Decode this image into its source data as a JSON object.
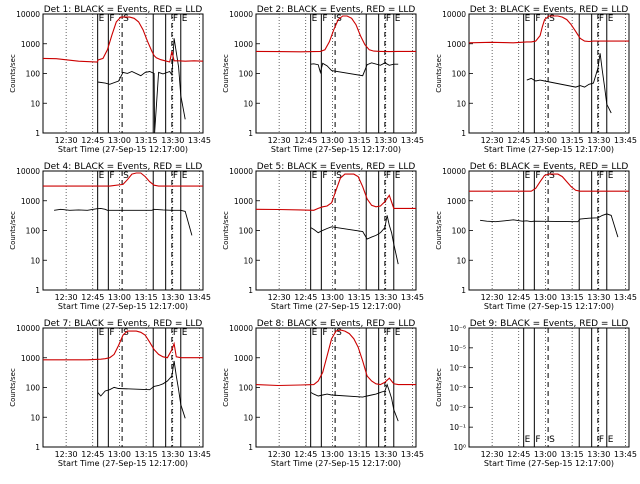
{
  "chart_data": [
    {
      "type": "line",
      "title": "Det 1: BLACK = Events, RED = LLD",
      "xlabel": "Start Time (27-Sep-15 12:17:00)",
      "ylabel": "Counts/sec",
      "x_tick_labels": [
        "12:30",
        "12:45",
        "13:00",
        "13:15",
        "13:30",
        "13:45"
      ],
      "y_tick_labels": [
        "1",
        "10",
        "100",
        "1000",
        "10000"
      ],
      "markers": [
        "E",
        "F",
        "S",
        "F",
        "E"
      ],
      "series": [
        {
          "name": "Events",
          "color": "#000000",
          "x": [
            12.3,
            14,
            15,
            17,
            18,
            19,
            20,
            22,
            23,
            24,
            25,
            25.1,
            26,
            27,
            28.5,
            29,
            29.5,
            30.5,
            31,
            32
          ],
          "y": [
            60,
            55,
            50,
            65,
            130,
            120,
            140,
            100,
            130,
            140,
            120,
            1,
            130,
            115,
            140,
            105,
            2000,
            200,
            20,
            3
          ]
        },
        {
          "name": "LLD",
          "color": "#cc0000",
          "x": [
            0,
            3,
            8,
            12.2,
            12.4,
            13.5,
            14.5,
            15.5,
            16.5,
            17.5,
            18.5,
            19.5,
            20.5,
            21.5,
            22.5,
            23.5,
            24.5,
            25,
            25.5,
            26.5,
            27.5,
            28.5,
            29,
            29.5,
            30.5,
            32,
            34,
            36
          ],
          "y": [
            400,
            390,
            320,
            300,
            350,
            400,
            800,
            2600,
            7500,
            11000,
            11000,
            11000,
            10000,
            7500,
            4000,
            1600,
            700,
            500,
            420,
            360,
            330,
            300,
            700,
            330,
            330,
            320,
            330,
            320
          ]
        }
      ]
    },
    {
      "type": "line",
      "title": "Det 2: BLACK = Events, RED = LLD",
      "xlabel": "Start Time (27-Sep-15 12:17:00)",
      "ylabel": "Counts/sec",
      "x_tick_labels": [
        "12:30",
        "12:45",
        "13:00",
        "13:15",
        "13:30",
        "13:45"
      ],
      "y_tick_labels": [
        "1",
        "10",
        "100",
        "1000",
        "10000"
      ],
      "markers": [
        "E",
        "F",
        "S",
        "F",
        "E"
      ],
      "series": [
        {
          "name": "Events",
          "color": "#000000",
          "x": [
            12.3,
            13,
            14,
            14.5,
            15,
            16,
            17,
            24,
            25,
            26,
            28,
            29,
            30,
            31,
            32
          ],
          "y": [
            250,
            260,
            240,
            130,
            270,
            220,
            150,
            100,
            240,
            280,
            230,
            280,
            230,
            250,
            250
          ]
        },
        {
          "name": "LLD",
          "color": "#cc0000",
          "x": [
            0,
            5,
            10,
            14.5,
            15.5,
            16.5,
            17.5,
            18.5,
            19.5,
            20.5,
            21.5,
            22.5,
            23.5,
            24.5,
            25.5,
            26.5,
            28,
            30,
            32,
            36
          ],
          "y": [
            700,
            690,
            680,
            700,
            800,
            1500,
            4000,
            9000,
            12000,
            12000,
            10000,
            6000,
            2500,
            1200,
            800,
            720,
            700,
            690,
            700,
            700
          ]
        }
      ]
    },
    {
      "type": "line",
      "title": "Det 3: BLACK = Events, RED = LLD",
      "xlabel": "Start Time (27-Sep-15 12:17:00)",
      "ylabel": "Counts/sec",
      "x_tick_labels": [
        "12:30",
        "12:45",
        "13:00",
        "13:15",
        "13:30",
        "13:45"
      ],
      "y_tick_labels": [
        "1",
        "10",
        "100",
        "1000",
        "10000"
      ],
      "markers": [
        "E",
        "F",
        "S",
        "F",
        "E"
      ],
      "series": [
        {
          "name": "Events",
          "color": "#000000",
          "x": [
            13,
            14,
            15,
            16,
            17,
            24,
            25,
            26,
            27,
            28,
            29,
            29.5,
            30,
            30.5,
            31,
            32
          ],
          "y": [
            70,
            80,
            65,
            70,
            65,
            40,
            45,
            40,
            50,
            55,
            180,
            600,
            150,
            40,
            10,
            5
          ]
        },
        {
          "name": "LLD",
          "color": "#cc0000",
          "x": [
            0,
            5,
            10,
            13,
            14,
            15,
            16,
            16.5,
            17,
            18,
            19,
            20,
            21,
            22,
            23,
            24,
            25,
            26,
            27,
            28,
            30,
            32,
            34,
            36
          ],
          "y": [
            1400,
            1450,
            1400,
            1500,
            1500,
            1600,
            2500,
            5000,
            9000,
            12000,
            12000,
            12000,
            11000,
            9000,
            6000,
            3500,
            2000,
            1600,
            1550,
            1600,
            1600,
            1600,
            1600,
            1600
          ]
        }
      ]
    },
    {
      "type": "line",
      "title": "Det 4: BLACK = Events, RED = LLD",
      "xlabel": "Start Time (27-Sep-15 12:17:00)",
      "ylabel": "Counts/sec",
      "x_tick_labels": [
        "12:30",
        "12:45",
        "13:00",
        "13:15",
        "13:30",
        "13:45"
      ],
      "y_tick_labels": [
        "1",
        "10",
        "100",
        "1000",
        "10000"
      ],
      "markers": [
        "E",
        "F",
        "S",
        "F",
        "E"
      ],
      "series": [
        {
          "name": "Events",
          "color": "#000000",
          "x": [
            2.5,
            4,
            6,
            8,
            10,
            12,
            13,
            14,
            14.5,
            24.5,
            25,
            27,
            29,
            31,
            32,
            33.5
          ],
          "y": [
            600,
            650,
            600,
            620,
            600,
            680,
            700,
            650,
            600,
            600,
            650,
            620,
            600,
            600,
            550,
            80
          ]
        },
        {
          "name": "LLD",
          "color": "#cc0000",
          "x": [
            0,
            5,
            10,
            15,
            18,
            19,
            20,
            21,
            22,
            23,
            24,
            25,
            26,
            28,
            30,
            32,
            34,
            36
          ],
          "y": [
            4200,
            4200,
            4200,
            4200,
            4800,
            7000,
            11000,
            12000,
            12000,
            9000,
            6000,
            4500,
            4200,
            4200,
            4200,
            4200,
            4200,
            4200
          ]
        }
      ]
    },
    {
      "type": "line",
      "title": "Det 5: BLACK = Events, RED = LLD",
      "xlabel": "Start Time (27-Sep-15 12:17:00)",
      "ylabel": "Counts/sec",
      "x_tick_labels": [
        "12:30",
        "12:45",
        "13:00",
        "13:15",
        "13:30",
        "13:45"
      ],
      "y_tick_labels": [
        "1",
        "10",
        "100",
        "1000",
        "10000"
      ],
      "markers": [
        "E",
        "F",
        "S",
        "F",
        "E"
      ],
      "series": [
        {
          "name": "Events",
          "color": "#000000",
          "x": [
            12.3,
            13,
            14,
            15,
            16,
            17,
            24,
            25,
            26,
            27,
            28,
            29,
            29.5,
            30,
            30.5,
            31,
            32
          ],
          "y": [
            150,
            130,
            100,
            120,
            140,
            160,
            110,
            60,
            70,
            80,
            100,
            150,
            400,
            180,
            100,
            40,
            8
          ]
        },
        {
          "name": "LLD",
          "color": "#cc0000",
          "x": [
            0,
            5,
            10,
            13,
            14,
            15,
            16,
            17,
            18,
            19,
            20,
            21,
            22,
            23,
            24,
            25,
            26,
            27,
            28,
            29,
            30,
            31,
            32,
            34,
            36
          ],
          "y": [
            650,
            640,
            620,
            600,
            700,
            800,
            850,
            1100,
            3000,
            8000,
            11000,
            11000,
            11000,
            9000,
            4000,
            1500,
            900,
            800,
            850,
            1200,
            2000,
            700,
            700,
            700,
            700
          ]
        }
      ]
    },
    {
      "type": "line",
      "title": "Det 6: BLACK = Events, RED = LLD",
      "xlabel": "Start Time (27-Sep-15 12:17:00)",
      "ylabel": "Counts/sec",
      "x_tick_labels": [
        "12:30",
        "12:45",
        "13:00",
        "13:15",
        "13:30",
        "13:45"
      ],
      "y_tick_labels": [
        "1",
        "10",
        "100",
        "1000",
        "10000"
      ],
      "markers": [
        "E",
        "F",
        "S",
        "F",
        "E"
      ],
      "series": [
        {
          "name": "Events",
          "color": "#000000",
          "x": [
            2.5,
            4,
            6,
            8,
            10,
            12,
            13,
            14,
            14.5,
            24.5,
            25,
            27,
            29,
            30,
            31,
            32,
            33.5
          ],
          "y": [
            270,
            250,
            240,
            260,
            280,
            250,
            260,
            240,
            250,
            240,
            300,
            320,
            330,
            400,
            450,
            400,
            70
          ]
        },
        {
          "name": "LLD",
          "color": "#cc0000",
          "x": [
            0,
            5,
            10,
            14,
            15,
            16,
            17,
            18,
            19,
            20,
            21,
            22,
            23,
            24,
            25,
            26,
            28,
            30,
            32,
            34,
            36
          ],
          "y": [
            2800,
            2800,
            2800,
            2800,
            3500,
            6000,
            10000,
            11000,
            11000,
            11000,
            9000,
            6000,
            4000,
            3000,
            2800,
            2800,
            2800,
            2800,
            2800,
            2800,
            2800
          ]
        }
      ]
    },
    {
      "type": "line",
      "title": "Det 7: BLACK = Events, RED = LLD",
      "xlabel": "Start Time (27-Sep-15 12:17:00)",
      "ylabel": "Counts/sec",
      "x_tick_labels": [
        "12:30",
        "12:45",
        "13:00",
        "13:15",
        "13:30",
        "13:45"
      ],
      "y_tick_labels": [
        "1",
        "10",
        "100",
        "1000",
        "10000"
      ],
      "markers": [
        "E",
        "F",
        "S",
        "F",
        "E"
      ],
      "series": [
        {
          "name": "Events",
          "color": "#000000",
          "x": [
            12.3,
            13,
            14,
            15,
            16,
            17,
            24,
            25,
            26,
            27,
            28,
            29,
            29.5,
            30,
            30.5,
            31,
            32
          ],
          "y": [
            80,
            60,
            90,
            100,
            120,
            110,
            100,
            130,
            140,
            160,
            200,
            300,
            1000,
            300,
            100,
            30,
            10
          ]
        },
        {
          "name": "LLD",
          "color": "#cc0000",
          "x": [
            0,
            5,
            10,
            13,
            14,
            15,
            16,
            17,
            18,
            19,
            20,
            21,
            22,
            23,
            24,
            25,
            26,
            27,
            28,
            29,
            29.5,
            30,
            31,
            32,
            34,
            36
          ],
          "y": [
            1100,
            1100,
            1100,
            1150,
            1200,
            1300,
            1700,
            3500,
            8000,
            11000,
            11000,
            11000,
            10000,
            8000,
            4500,
            2500,
            1700,
            1400,
            1300,
            2500,
            4000,
            1400,
            1300,
            1300,
            1300,
            1300
          ]
        }
      ]
    },
    {
      "type": "line",
      "title": "Det 8: BLACK = Events, RED = LLD",
      "xlabel": "Start Time (27-Sep-15 12:17:00)",
      "ylabel": "Counts/sec",
      "x_tick_labels": [
        "12:30",
        "12:45",
        "13:00",
        "13:15",
        "13:30",
        "13:45"
      ],
      "y_tick_labels": [
        "1",
        "10",
        "100",
        "1000",
        "10000"
      ],
      "markers": [
        "E",
        "F",
        "S",
        "F",
        "E"
      ],
      "series": [
        {
          "name": "Events",
          "color": "#000000",
          "x": [
            12.3,
            13,
            14,
            15,
            16,
            17,
            24,
            25,
            26,
            27,
            28,
            29,
            29.5,
            30,
            30.5,
            31,
            32
          ],
          "y": [
            80,
            70,
            60,
            65,
            70,
            65,
            55,
            60,
            65,
            70,
            80,
            90,
            150,
            90,
            50,
            20,
            8
          ]
        },
        {
          "name": "LLD",
          "color": "#cc0000",
          "x": [
            0,
            5,
            10,
            13,
            14,
            15,
            16,
            17,
            18,
            19,
            20,
            21,
            22,
            23,
            24,
            25,
            26,
            27,
            28,
            29,
            30,
            31,
            32,
            34,
            36
          ],
          "y": [
            150,
            140,
            145,
            150,
            200,
            400,
            1500,
            6000,
            11000,
            12000,
            11000,
            9000,
            6000,
            3000,
            1000,
            300,
            200,
            160,
            150,
            180,
            250,
            160,
            150,
            150,
            150
          ]
        }
      ]
    },
    {
      "type": "line",
      "title": "Det 9: BLACK = Events, RED = LLD",
      "xlabel": "Start Time (27-Sep-15 12:17:00)",
      "ylabel": "Counts/sec",
      "x_tick_labels": [
        "12:30",
        "12:45",
        "13:00",
        "13:15",
        "13:30",
        "13:45"
      ],
      "y_tick_labels": [
        "10⁰",
        "10⁻¹",
        "10⁻²",
        "10⁻³",
        "10⁻⁴",
        "10⁻⁵",
        "10⁻⁶"
      ],
      "markers": [
        "E",
        "F",
        "S",
        "F",
        "E"
      ],
      "series": []
    }
  ]
}
